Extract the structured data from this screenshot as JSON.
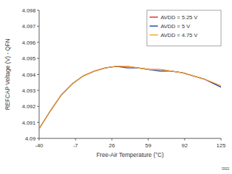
{
  "chart_data": {
    "type": "line",
    "x_label": "Free-Air Temperature (°C)",
    "y_label": "REFCAP Voltage (V) - QFN",
    "annotations": [
      "D022"
    ],
    "x": [
      -40,
      -30,
      -20,
      -10,
      0,
      10,
      20,
      30,
      40,
      50,
      60,
      70,
      80,
      90,
      100,
      110,
      125
    ],
    "series": [
      {
        "name": "AVDD = 5.25 V",
        "color": "#e8262a",
        "values": [
          4.0906,
          4.0917,
          4.0927,
          4.0934,
          4.0939,
          4.0942,
          4.0944,
          4.0945,
          4.0945,
          4.0944,
          4.0943,
          4.0943,
          4.0942,
          4.0941,
          4.0939,
          4.0937,
          4.0932
        ]
      },
      {
        "name": "AVDD = 5 V",
        "color": "#1f3fa8",
        "values": [
          4.0906,
          4.0917,
          4.0927,
          4.0934,
          4.0939,
          4.0942,
          4.0944,
          4.0945,
          4.0944,
          4.0944,
          4.0943,
          4.0942,
          4.0942,
          4.0941,
          4.0939,
          4.0937,
          4.0932
        ]
      },
      {
        "name": "AVDD = 4.75 V",
        "color": "#f5a623",
        "values": [
          4.0906,
          4.0917,
          4.0927,
          4.0934,
          4.0939,
          4.0942,
          4.0944,
          4.0945,
          4.0945,
          4.0944,
          4.0943,
          4.0943,
          4.0942,
          4.0941,
          4.0939,
          4.0937,
          4.0933
        ]
      }
    ],
    "xlim": [
      -40,
      125
    ],
    "xticks": [
      -40,
      -7,
      26,
      59,
      92,
      125
    ],
    "ylim": [
      4.09,
      4.098
    ],
    "yticks": [
      4.09,
      4.091,
      4.092,
      4.093,
      4.094,
      4.095,
      4.096,
      4.097,
      4.098
    ],
    "grid": false,
    "legend": "top-right"
  }
}
